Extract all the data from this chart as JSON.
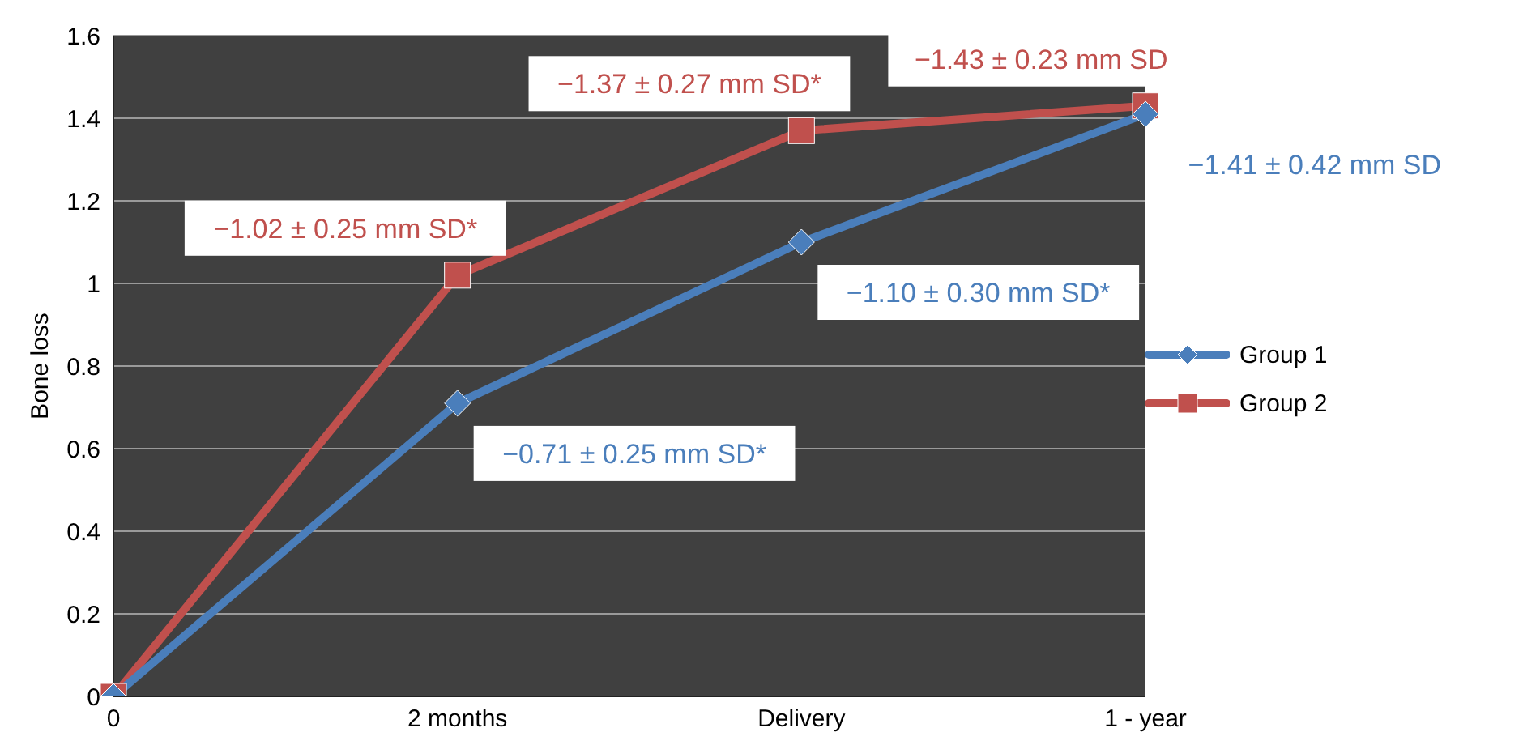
{
  "chart_data": {
    "type": "line",
    "ylabel": "Bone loss",
    "categories": [
      "0",
      "2 months",
      "Delivery",
      "1 - year"
    ],
    "series": [
      {
        "name": "Group 1",
        "color": "#4a7ebb",
        "marker": "diamond",
        "values": [
          0,
          0.71,
          1.1,
          1.41
        ]
      },
      {
        "name": "Group 2",
        "color": "#c0504d",
        "marker": "square",
        "values": [
          0,
          1.02,
          1.37,
          1.43
        ]
      }
    ],
    "ylim": [
      0,
      1.6
    ],
    "yticks": [
      0,
      0.2,
      0.4,
      0.6,
      0.8,
      1,
      1.2,
      1.4,
      1.6
    ],
    "grid": "y",
    "legend": "right",
    "annotations": [
      {
        "text": "−0.71 ± 0.25 mm SD*",
        "x": "2 months",
        "y": 0.71
      },
      {
        "text": "−1.02 ± 0.25 mm SD*",
        "x": "2 months",
        "y": 1.02
      },
      {
        "text": "−1.10 ± 0.30 mm SD*",
        "x": "Delivery",
        "y": 1.1
      },
      {
        "text": "−1.37 ± 0.27 mm SD*",
        "x": "Delivery",
        "y": 1.37
      },
      {
        "text": "−1.41 ± 0.42 mm SD",
        "x": "1 - year",
        "y": 1.41
      },
      {
        "text": "−1.43 ± 0.23 mm SD",
        "x": "1 - year",
        "y": 1.43
      }
    ]
  }
}
